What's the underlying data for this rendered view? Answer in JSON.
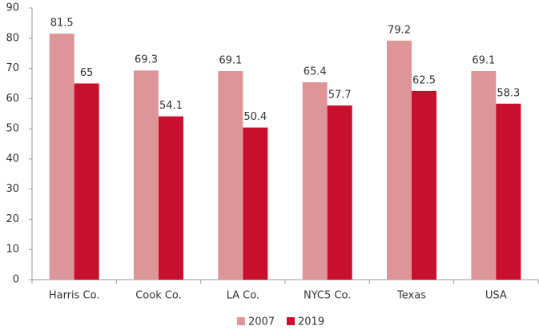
{
  "chart_data": {
    "type": "bar",
    "categories": [
      "Harris Co.",
      "Cook Co.",
      "LA Co.",
      "NYC5 Co.",
      "Texas",
      "USA"
    ],
    "series": [
      {
        "name": "2007",
        "color": "#dd9599",
        "values": [
          81.5,
          69.3,
          69.1,
          65.4,
          79.2,
          69.1
        ]
      },
      {
        "name": "2019",
        "color": "#c8102e",
        "values": [
          65,
          54.1,
          50.4,
          57.7,
          62.5,
          58.3
        ]
      }
    ],
    "ylim": [
      0,
      90
    ],
    "yticks": [
      0,
      10,
      20,
      30,
      40,
      50,
      60,
      70,
      80,
      90
    ],
    "grid": false,
    "legend": "bottom"
  }
}
